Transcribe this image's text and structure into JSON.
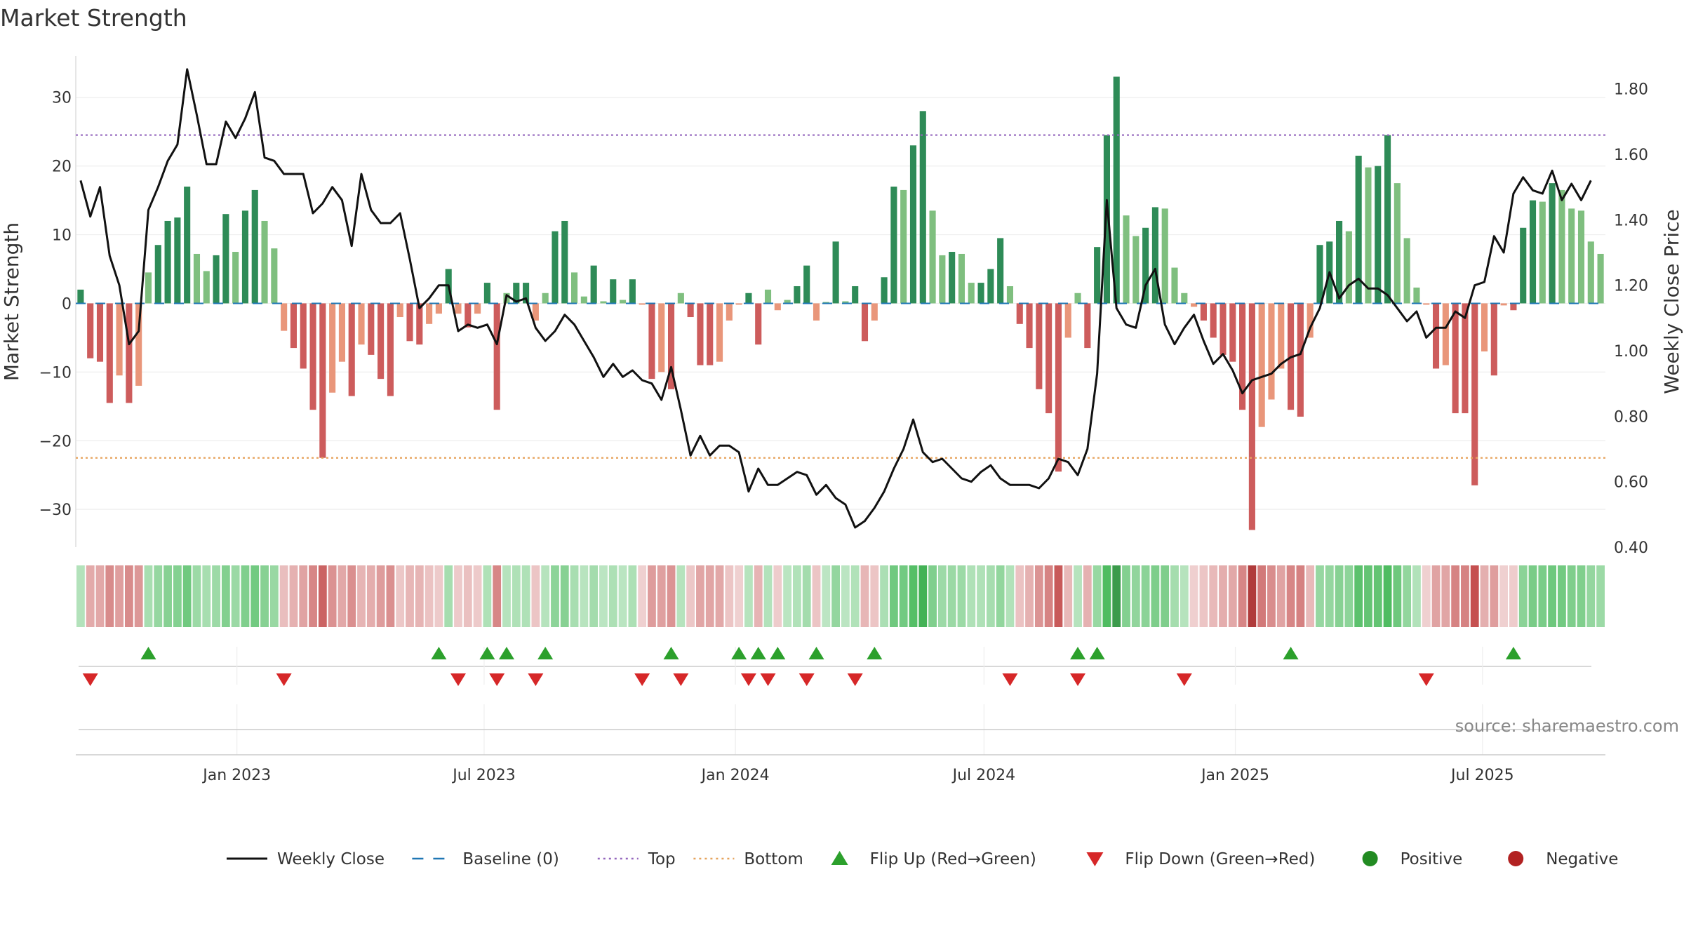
{
  "chart_data": {
    "type": "bar",
    "title": "Market Strength",
    "ylabel": "Market Strength",
    "y2label": "Weekly Close Price",
    "ylim": [
      -35.5,
      36
    ],
    "y2lim": [
      0.4,
      1.9
    ],
    "ticks_left": [
      "30",
      "20",
      "10",
      "0",
      "−10",
      "−20",
      "−30"
    ],
    "ticks_left_values": [
      30,
      20,
      10,
      0,
      -10,
      -20,
      -30
    ],
    "ticks_right": [
      "1.80",
      "1.60",
      "1.40",
      "1.20",
      "1.00",
      "0.80",
      "0.60",
      "0.40"
    ],
    "ticks_right_values": [
      1.8,
      1.6,
      1.4,
      1.2,
      1.0,
      0.8,
      0.6,
      0.4
    ],
    "x_start": "2022-09-05",
    "x_end": "2025-09-29",
    "x_ticks": [
      {
        "label": "Jan 2023",
        "date": "2023-01-01"
      },
      {
        "label": "Jul 2023",
        "date": "2023-07-01"
      },
      {
        "label": "Jan 2024",
        "date": "2024-01-01"
      },
      {
        "label": "Jul 2024",
        "date": "2024-07-01"
      },
      {
        "label": "Jan 2025",
        "date": "2025-01-01"
      },
      {
        "label": "Jul 2025",
        "date": "2025-07-01"
      }
    ],
    "top_level": 24.5,
    "bottom_level": -22.5,
    "baseline": 0,
    "strength": [
      2,
      -8,
      -8.5,
      -14.5,
      -10.5,
      -14.5,
      -12,
      4.5,
      8.5,
      12,
      12.5,
      17,
      7.2,
      4.7,
      7,
      13,
      7.5,
      13.5,
      16.5,
      12,
      8,
      -4,
      -6.5,
      -9.5,
      -15.5,
      -22.5,
      -13,
      -8.5,
      -13.5,
      -6,
      -7.5,
      -11,
      -13.5,
      -2,
      -5.5,
      -6,
      -3,
      -1.5,
      5,
      -1.5,
      -3.5,
      -1.5,
      3,
      -15.5,
      1.5,
      3,
      3,
      -2.5,
      1.5,
      10.5,
      12,
      4.5,
      1,
      5.5,
      0.3,
      3.5,
      0.5,
      3.5,
      -0.2,
      -11,
      -10,
      -12.5,
      1.5,
      -2,
      -9,
      -9,
      -8.5,
      -2.5,
      -0.2,
      1.5,
      -6,
      2,
      -1,
      0.5,
      2.5,
      5.5,
      -2.5,
      0.2,
      9,
      0.3,
      2.5,
      -5.5,
      -2.5,
      3.8,
      17,
      16.5,
      23,
      28,
      13.5,
      7,
      7.5,
      7.2,
      3,
      3,
      5,
      9.5,
      2.5,
      -3,
      -6.5,
      -12.5,
      -16,
      -24.5,
      -5,
      1.5,
      -6.5,
      8.2,
      24.5,
      33,
      12.8,
      9.8,
      11,
      14,
      13.8,
      5.2,
      1.5,
      -0.5,
      -2.5,
      -5,
      -7.5,
      -8.5,
      -15.5,
      -33,
      -18,
      -14,
      -9.5,
      -15.5,
      -16.5,
      -5,
      8.5,
      9,
      12,
      10.5,
      21.5,
      19.8,
      20,
      24.5,
      17.5,
      9.5,
      2.3,
      -0.2,
      -9.5,
      -9,
      -16,
      -16,
      -26.5,
      -7,
      -10.5,
      -0.3,
      -1,
      11,
      15,
      14.8,
      17.5,
      16.5,
      13.8,
      13.5,
      9,
      7.2
    ],
    "weekly_close": [
      1.52,
      1.41,
      1.5,
      1.29,
      1.2,
      1.02,
      1.06,
      1.43,
      1.5,
      1.58,
      1.63,
      1.86,
      1.72,
      1.57,
      1.57,
      1.7,
      1.65,
      1.71,
      1.79,
      1.59,
      1.58,
      1.54,
      1.54,
      1.54,
      1.42,
      1.45,
      1.5,
      1.46,
      1.32,
      1.54,
      1.43,
      1.39,
      1.39,
      1.42,
      1.28,
      1.13,
      1.16,
      1.2,
      1.2,
      1.06,
      1.08,
      1.07,
      1.08,
      1.02,
      1.17,
      1.15,
      1.16,
      1.07,
      1.03,
      1.06,
      1.11,
      1.08,
      1.03,
      0.98,
      0.92,
      0.96,
      0.92,
      0.94,
      0.91,
      0.9,
      0.85,
      0.95,
      0.82,
      0.68,
      0.74,
      0.68,
      0.71,
      0.71,
      0.69,
      0.57,
      0.64,
      0.59,
      0.59,
      0.61,
      0.63,
      0.62,
      0.56,
      0.59,
      0.55,
      0.53,
      0.46,
      0.48,
      0.52,
      0.57,
      0.64,
      0.7,
      0.79,
      0.69,
      0.66,
      0.67,
      0.64,
      0.61,
      0.6,
      0.63,
      0.65,
      0.61,
      0.59,
      0.59,
      0.59,
      0.58,
      0.61,
      0.67,
      0.66,
      0.62,
      0.7,
      0.93,
      1.46,
      1.13,
      1.08,
      1.07,
      1.2,
      1.25,
      1.08,
      1.02,
      1.07,
      1.11,
      1.03,
      0.96,
      0.99,
      0.94,
      0.87,
      0.91,
      0.92,
      0.93,
      0.96,
      0.98,
      0.99,
      1.07,
      1.13,
      1.24,
      1.16,
      1.2,
      1.22,
      1.19,
      1.19,
      1.17,
      1.13,
      1.09,
      1.12,
      1.04,
      1.07,
      1.07,
      1.12,
      1.1,
      1.2,
      1.21,
      1.35,
      1.3,
      1.48,
      1.53,
      1.49,
      1.48,
      1.55,
      1.46,
      1.51,
      1.46,
      1.52
    ],
    "heat_strip": "normalized market strength per week (green positive, red negative)",
    "flip_up_weeks": [
      7,
      37,
      42,
      44,
      48,
      61,
      68,
      70,
      72,
      76,
      82,
      103,
      105,
      125,
      148
    ],
    "flip_down_weeks": [
      1,
      21,
      39,
      43,
      47,
      58,
      62,
      69,
      71,
      75,
      80,
      96,
      103,
      114,
      139
    ],
    "legend": [
      {
        "label": "Weekly Close",
        "symbol": "line",
        "color": "#111111"
      },
      {
        "label": "Baseline (0)",
        "symbol": "dash",
        "color": "#1f77b4"
      },
      {
        "label": "Top",
        "symbol": "dot",
        "color": "#9467bd"
      },
      {
        "label": "Bottom",
        "symbol": "dot",
        "color": "#e6a35c"
      },
      {
        "label": "Flip Up (Red→Green)",
        "symbol": "triangle-up",
        "color": "#2ca02c"
      },
      {
        "label": "Flip Down (Green→Red)",
        "symbol": "triangle-down",
        "color": "#d62728"
      },
      {
        "label": "Positive",
        "symbol": "circle",
        "color": "#228b22"
      },
      {
        "label": "Negative",
        "symbol": "circle",
        "color": "#b22222"
      }
    ],
    "legend_position": "bottom",
    "grid": true,
    "colors": {
      "pos_strong": "#2e8b57",
      "pos_weak": "#7fbf7f",
      "neg_strong": "#cd5c5c",
      "neg_weak": "#e9967a",
      "close_line": "#111111"
    }
  },
  "source": "source: sharemaestro.com"
}
